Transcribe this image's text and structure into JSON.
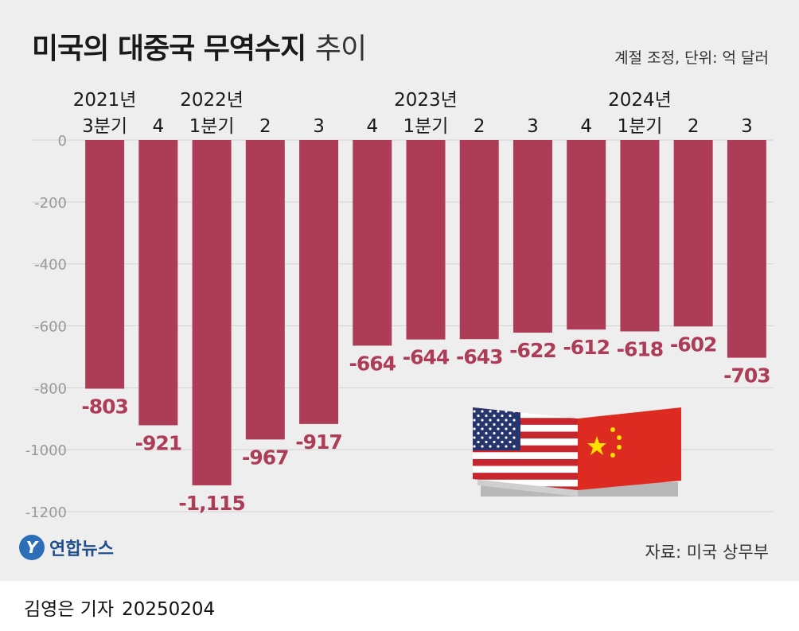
{
  "header": {
    "title_bold": "미국의 대중국 무역수지",
    "title_light": "추이",
    "unit_note": "계절 조정, 단위: 억 달러"
  },
  "footer": {
    "logo_text": "연합뉴스",
    "source": "자료: 미국 상무부",
    "byline_name": "김영은 기자",
    "byline_date": "20250204"
  },
  "colors": {
    "bar": "#ad3c57",
    "label": "#ad3c57",
    "axis": "#999999",
    "background": "#efeeee"
  },
  "chart_data": {
    "type": "bar",
    "categories": [
      "3분기",
      "4",
      "1분기",
      "2",
      "3",
      "4",
      "1분기",
      "2",
      "3",
      "4",
      "1분기",
      "2",
      "3"
    ],
    "year_labels": [
      {
        "index": 0,
        "label": "2021년"
      },
      {
        "index": 2,
        "label": "2022년"
      },
      {
        "index": 6,
        "label": "2023년"
      },
      {
        "index": 10,
        "label": "2024년"
      }
    ],
    "values": [
      -803,
      -921,
      -1115,
      -967,
      -917,
      -664,
      -644,
      -643,
      -622,
      -612,
      -618,
      -602,
      -703
    ],
    "value_labels": [
      "-803",
      "-921",
      "-1,115",
      "-967",
      "-917",
      "-664",
      "-644",
      "-643",
      "-622",
      "-612",
      "-618",
      "-602",
      "-703"
    ],
    "ylim": [
      -1200,
      0
    ],
    "yticks": [
      0,
      -200,
      -400,
      -600,
      -800,
      -1000,
      -1200
    ],
    "grid": true
  }
}
